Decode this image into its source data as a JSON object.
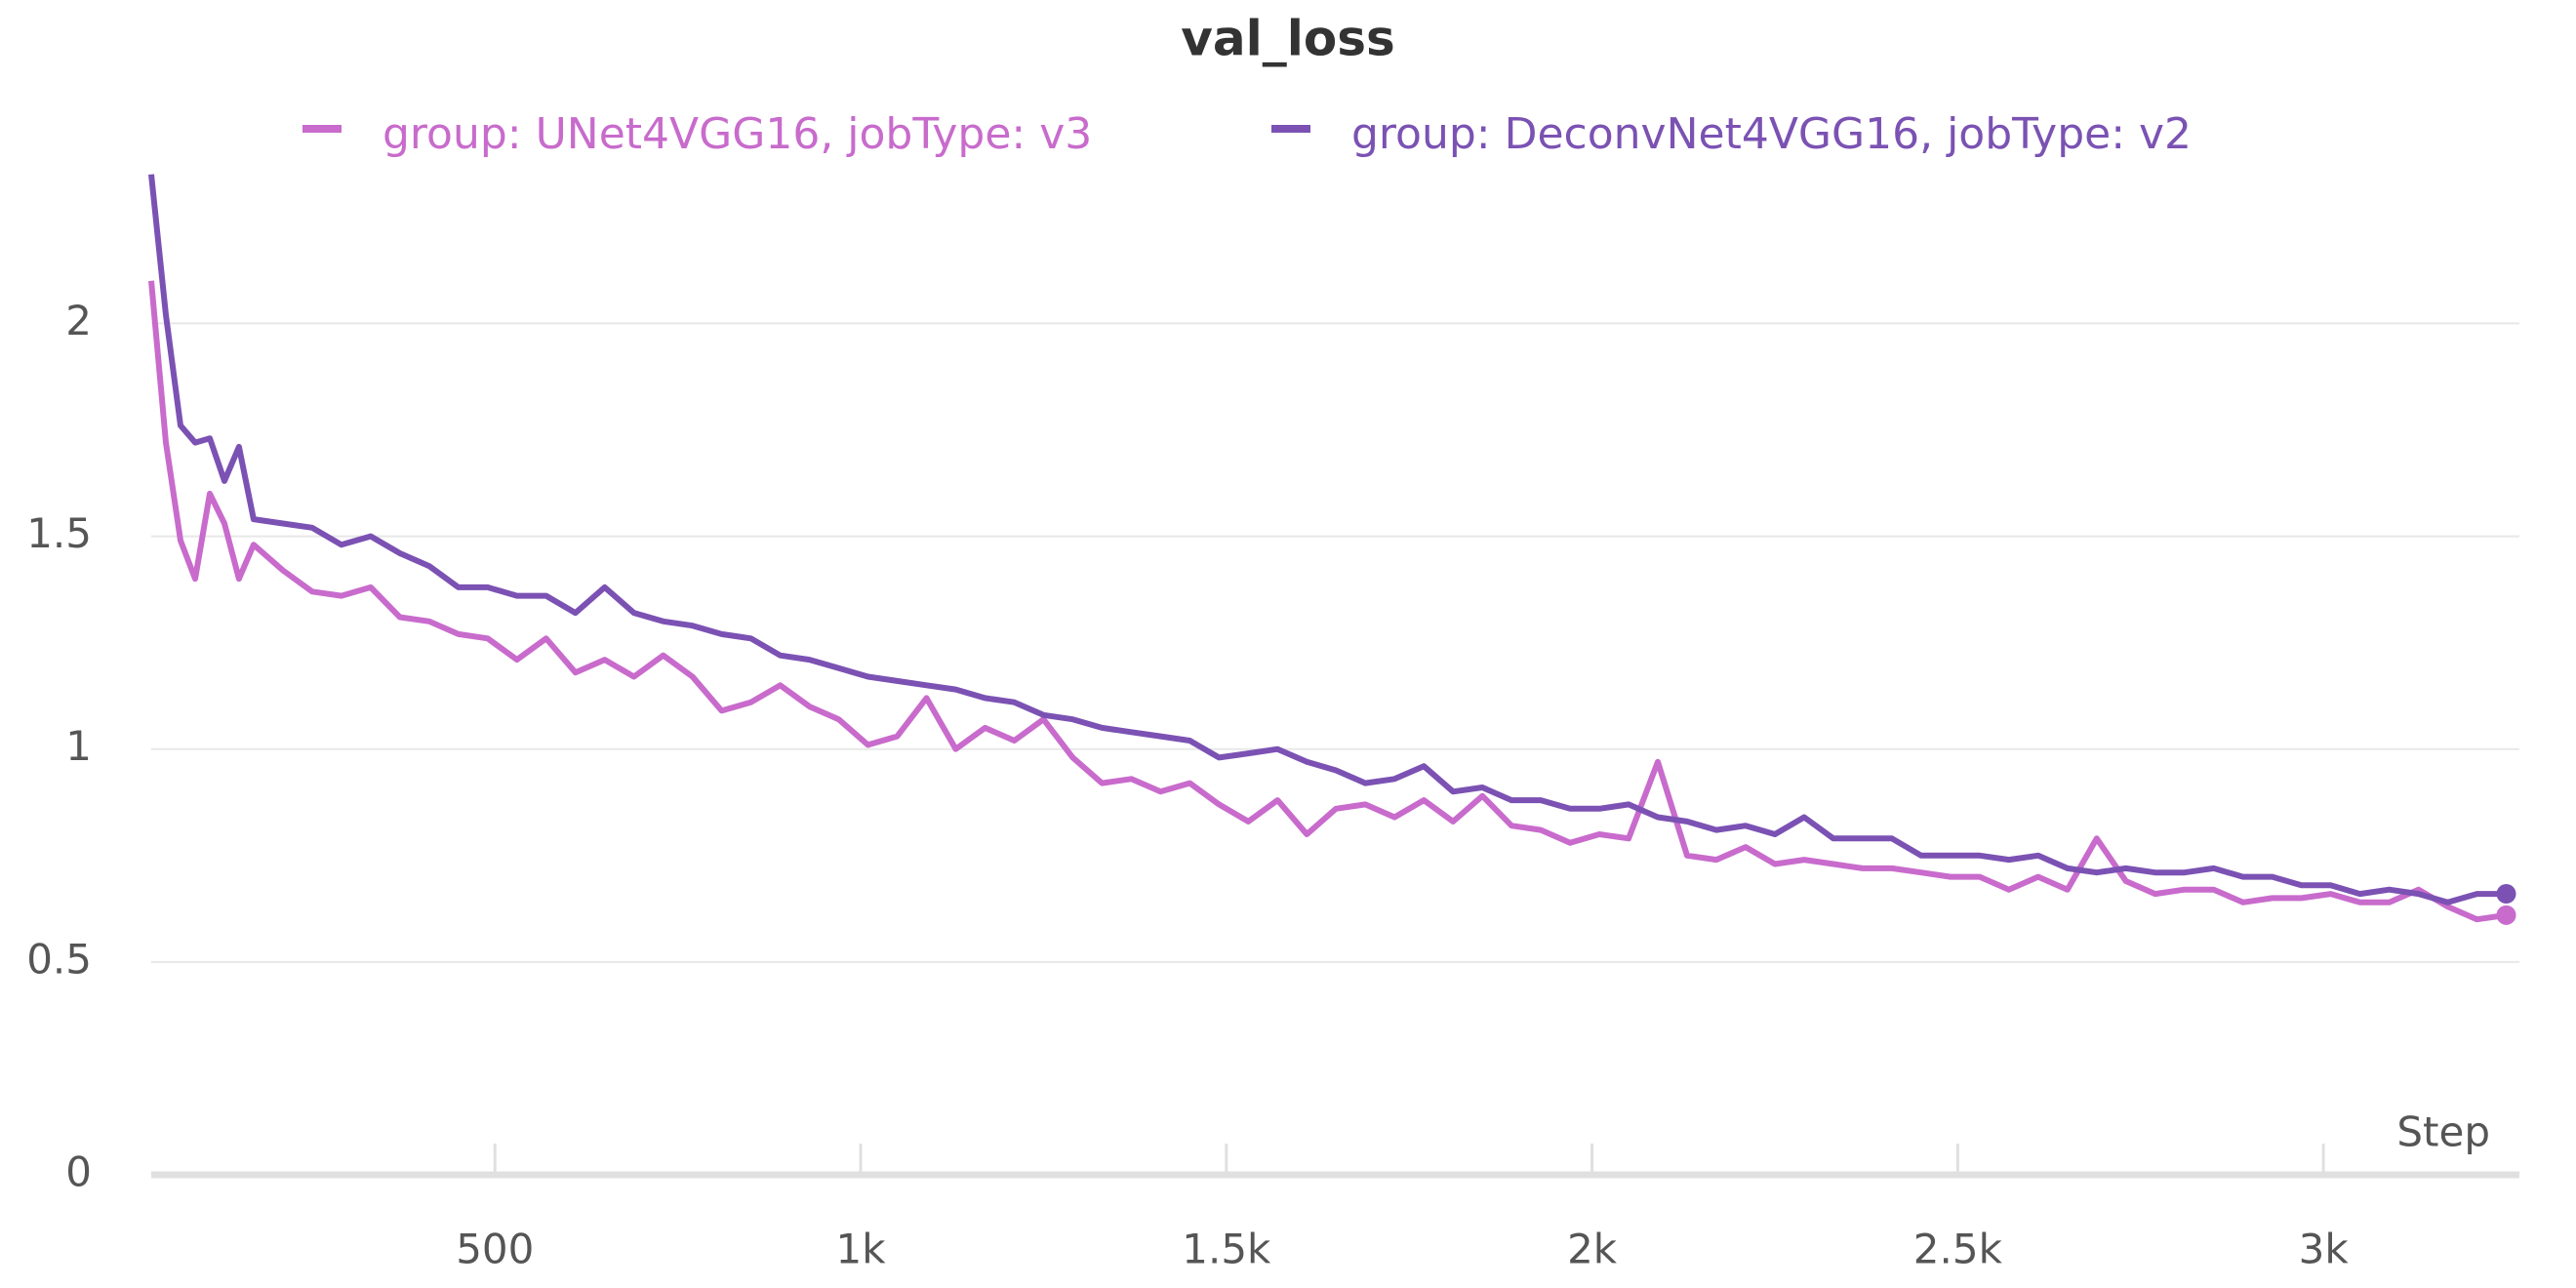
{
  "chart_data": {
    "type": "line",
    "title": "val_loss",
    "xlabel": "Step",
    "x": [
      30,
      50,
      70,
      90,
      110,
      130,
      150,
      170,
      210,
      250,
      290,
      330,
      370,
      410,
      450,
      490,
      530,
      570,
      610,
      650,
      690,
      730,
      770,
      810,
      850,
      890,
      930,
      970,
      1010,
      1050,
      1090,
      1130,
      1170,
      1210,
      1250,
      1290,
      1330,
      1370,
      1410,
      1450,
      1490,
      1530,
      1570,
      1610,
      1650,
      1690,
      1730,
      1770,
      1810,
      1850,
      1890,
      1930,
      1970,
      2010,
      2050,
      2090,
      2130,
      2170,
      2210,
      2250,
      2290,
      2330,
      2370,
      2410,
      2450,
      2490,
      2530,
      2570,
      2610,
      2650,
      2690,
      2730,
      2770,
      2810,
      2850,
      2890,
      2930,
      2970,
      3010,
      3050,
      3090,
      3130,
      3170,
      3210,
      3250
    ],
    "series": [
      {
        "name": "group: UNet4VGG16, jobType: v3",
        "color": "#c86bcc",
        "values": [
          2.1,
          1.72,
          1.49,
          1.4,
          1.6,
          1.53,
          1.4,
          1.48,
          1.42,
          1.37,
          1.36,
          1.38,
          1.31,
          1.3,
          1.27,
          1.26,
          1.21,
          1.26,
          1.18,
          1.21,
          1.17,
          1.22,
          1.17,
          1.09,
          1.11,
          1.15,
          1.1,
          1.07,
          1.01,
          1.03,
          1.12,
          1.0,
          1.05,
          1.02,
          1.07,
          0.98,
          0.92,
          0.93,
          0.9,
          0.92,
          0.87,
          0.83,
          0.88,
          0.8,
          0.86,
          0.87,
          0.84,
          0.88,
          0.83,
          0.89,
          0.82,
          0.81,
          0.78,
          0.8,
          0.79,
          0.97,
          0.75,
          0.74,
          0.77,
          0.73,
          0.74,
          0.73,
          0.72,
          0.72,
          0.71,
          0.7,
          0.7,
          0.67,
          0.7,
          0.67,
          0.79,
          0.69,
          0.66,
          0.67,
          0.67,
          0.64,
          0.65,
          0.65,
          0.66,
          0.64,
          0.64,
          0.67,
          0.63,
          0.6,
          0.61
        ]
      },
      {
        "name": "group: DeconvNet4VGG16, jobType: v2",
        "color": "#7b52b3",
        "values": [
          2.35,
          2.02,
          1.76,
          1.72,
          1.73,
          1.63,
          1.71,
          1.54,
          1.53,
          1.52,
          1.48,
          1.5,
          1.46,
          1.43,
          1.38,
          1.38,
          1.36,
          1.36,
          1.32,
          1.38,
          1.32,
          1.3,
          1.29,
          1.27,
          1.26,
          1.22,
          1.21,
          1.19,
          1.17,
          1.16,
          1.15,
          1.14,
          1.12,
          1.11,
          1.08,
          1.07,
          1.05,
          1.04,
          1.03,
          1.02,
          0.98,
          0.99,
          1.0,
          0.97,
          0.95,
          0.92,
          0.93,
          0.96,
          0.9,
          0.91,
          0.88,
          0.88,
          0.86,
          0.86,
          0.87,
          0.84,
          0.83,
          0.81,
          0.82,
          0.8,
          0.84,
          0.79,
          0.79,
          0.79,
          0.75,
          0.75,
          0.75,
          0.74,
          0.75,
          0.72,
          0.71,
          0.72,
          0.71,
          0.71,
          0.72,
          0.7,
          0.7,
          0.68,
          0.68,
          0.66,
          0.67,
          0.66,
          0.64,
          0.66,
          0.66
        ]
      }
    ],
    "xlim": [
      30,
      3268
    ],
    "ylim": [
      0,
      2.37
    ],
    "xticks": [
      500,
      {
        "value": 1000,
        "label": "1k"
      },
      {
        "value": 1500,
        "label": "1.5k"
      },
      {
        "value": 2000,
        "label": "2k"
      },
      {
        "value": 2500,
        "label": "2.5k"
      },
      {
        "value": 3000,
        "label": "3k"
      }
    ],
    "yticks": [
      0,
      0.5,
      1,
      1.5,
      2
    ],
    "grid": true,
    "legend": "top"
  }
}
